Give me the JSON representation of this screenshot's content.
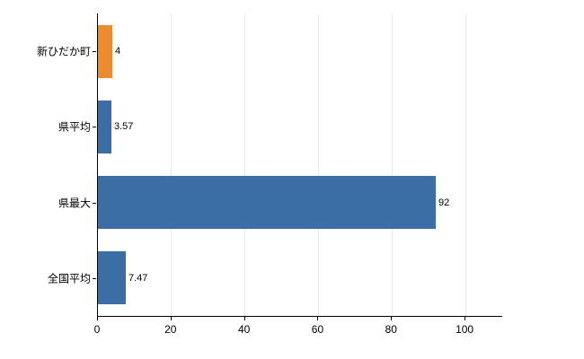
{
  "chart_data": {
    "type": "bar",
    "orientation": "horizontal",
    "title": "",
    "xlabel": "",
    "ylabel": "",
    "categories": [
      "新ひだか町",
      "県平均",
      "県最大",
      "全国平均"
    ],
    "values": [
      4,
      3.57,
      92,
      7.47
    ],
    "value_labels": [
      "4",
      "3.57",
      "92",
      "7.47"
    ],
    "bar_colors": [
      "#ED8B33",
      "#3A6EA5",
      "#3A6EA5",
      "#3A6EA5"
    ],
    "xlim": [
      0,
      110
    ],
    "x_ticks": [
      0,
      20,
      40,
      60,
      80,
      100
    ],
    "grid": true,
    "legend": false
  },
  "colors": {
    "axis": "#000000",
    "grid": "#e9e9e9",
    "text": "#000000",
    "background": "#ffffff"
  }
}
